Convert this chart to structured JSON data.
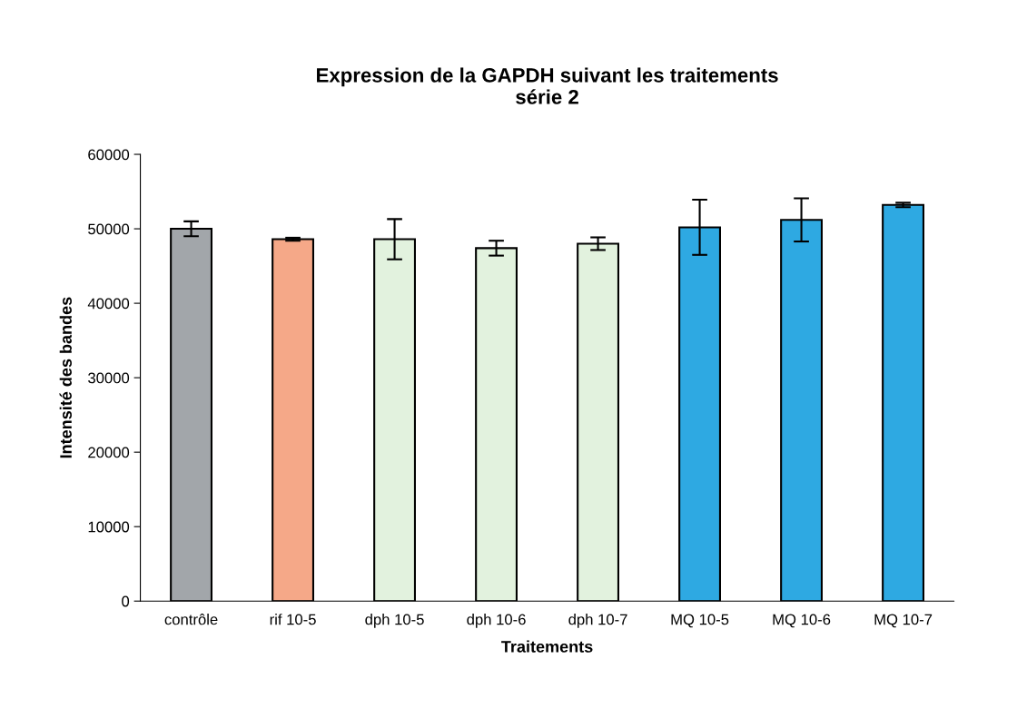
{
  "chart_data": {
    "type": "bar",
    "title": "Expression de la GAPDH suivant les traitements\nsérie 2",
    "xlabel": "Traitements",
    "ylabel": "Intensité des bandes",
    "categories": [
      "contrôle",
      "rif 10-5",
      "dph 10-5",
      "dph 10-6",
      "dph 10-7",
      "MQ 10-5",
      "MQ 10-6",
      "MQ 10-7"
    ],
    "values": [
      50000,
      48600,
      48600,
      47400,
      48000,
      50200,
      51200,
      53200
    ],
    "errors": [
      1000,
      200,
      2700,
      1000,
      850,
      3700,
      2900,
      300
    ],
    "colors": [
      "#a2a6aa",
      "#f5a888",
      "#e2f2de",
      "#e2f2de",
      "#e2f2de",
      "#2ea9e2",
      "#2ea9e2",
      "#2ea9e2"
    ],
    "ylim": [
      0,
      60000
    ],
    "yticks": [
      0,
      10000,
      20000,
      30000,
      40000,
      50000,
      60000
    ],
    "grid": false,
    "legend": false
  }
}
